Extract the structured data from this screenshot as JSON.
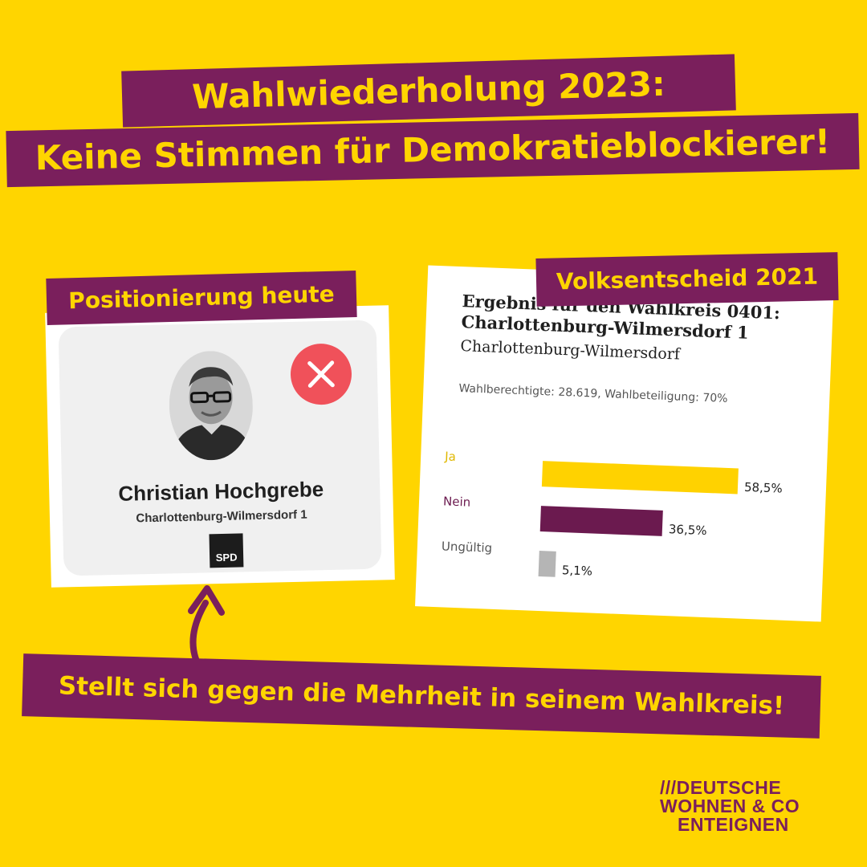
{
  "header": {
    "line1": "Wahlwiederholung 2023:",
    "line2": "Keine Stimmen für Demokratieblockierer!"
  },
  "left_panel": {
    "label": "Positionierung heute",
    "candidate_name": "Christian Hochgrebe",
    "district": "Charlottenburg-Wilmersdorf 1",
    "party": "SPD",
    "status_icon": "cross-icon",
    "colors": {
      "cross": "#f0515a"
    }
  },
  "right_panel": {
    "label": "Volksentscheid 2021",
    "heading_line1": "Ergebnis für den Wahlkreis 0401:",
    "heading_line2": "Charlottenburg-Wilmersdorf 1",
    "subheading": "Charlottenburg-Wilmersdorf",
    "meta": "Wahlberechtigte: 28.619, Wahlbeteiligung: 70%"
  },
  "chart_data": {
    "type": "bar",
    "categories": [
      "Ja",
      "Nein",
      "Ungültig"
    ],
    "values": [
      58.5,
      36.5,
      5.1
    ],
    "value_labels": [
      "58,5%",
      "36,5%",
      "5,1%"
    ],
    "colors": [
      "#ffd200",
      "#6b1a4f",
      "#b5b5b5"
    ],
    "label_colors": [
      "#e0b800",
      "#6b1a4f",
      "#555555"
    ]
  },
  "footer_banner": "Stellt sich gegen die Mehrheit in seinem Wahlkreis!",
  "logo": {
    "line1": "DEUTSCHE",
    "line2": "WOHNEN & CO",
    "line3": "ENTEIGNEN"
  },
  "colors": {
    "background": "#ffd500",
    "banner": "#7a1f5c",
    "banner_text": "#ffd500"
  }
}
